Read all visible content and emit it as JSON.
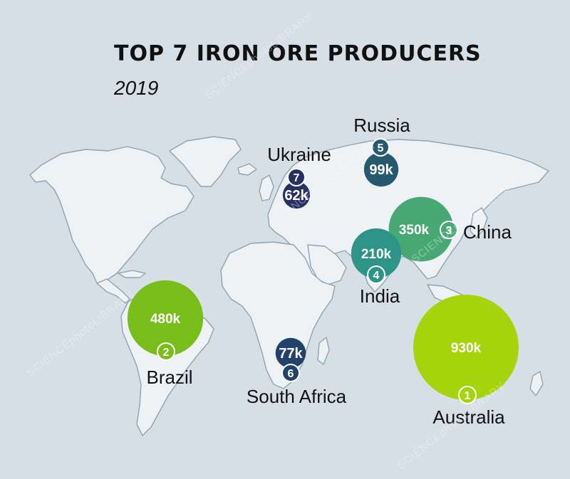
{
  "title": "TOP 7 IRON ORE PRODUCERS",
  "subtitle": "2019",
  "watermark": "SCIENCEphotoLIBRARY",
  "colors": {
    "background": "#d6dee6",
    "land": "#eef2f5",
    "coast": "#8ea3b3",
    "rank_1": "#a6d40c",
    "rank_2": "#79bd1b",
    "rank_3": "#47a873",
    "rank_4": "#2e9487",
    "rank_5": "#27596e",
    "rank_6": "#22426b",
    "rank_7": "#282f62"
  },
  "producers": [
    {
      "rank": "1",
      "country": "Australia",
      "value": "930k",
      "amount_k": 930,
      "color": "#a6d40c"
    },
    {
      "rank": "2",
      "country": "Brazil",
      "value": "480k",
      "amount_k": 480,
      "color": "#79bd1b"
    },
    {
      "rank": "3",
      "country": "China",
      "value": "350k",
      "amount_k": 350,
      "color": "#47a873"
    },
    {
      "rank": "4",
      "country": "India",
      "value": "210k",
      "amount_k": 210,
      "color": "#2e9487"
    },
    {
      "rank": "5",
      "country": "Russia",
      "value": "99k",
      "amount_k": 99,
      "color": "#27596e"
    },
    {
      "rank": "6",
      "country": "South Africa",
      "value": "77k",
      "amount_k": 77,
      "color": "#22426b"
    },
    {
      "rank": "7",
      "country": "Ukraine",
      "value": "62k",
      "amount_k": 62,
      "color": "#282f62"
    }
  ]
}
